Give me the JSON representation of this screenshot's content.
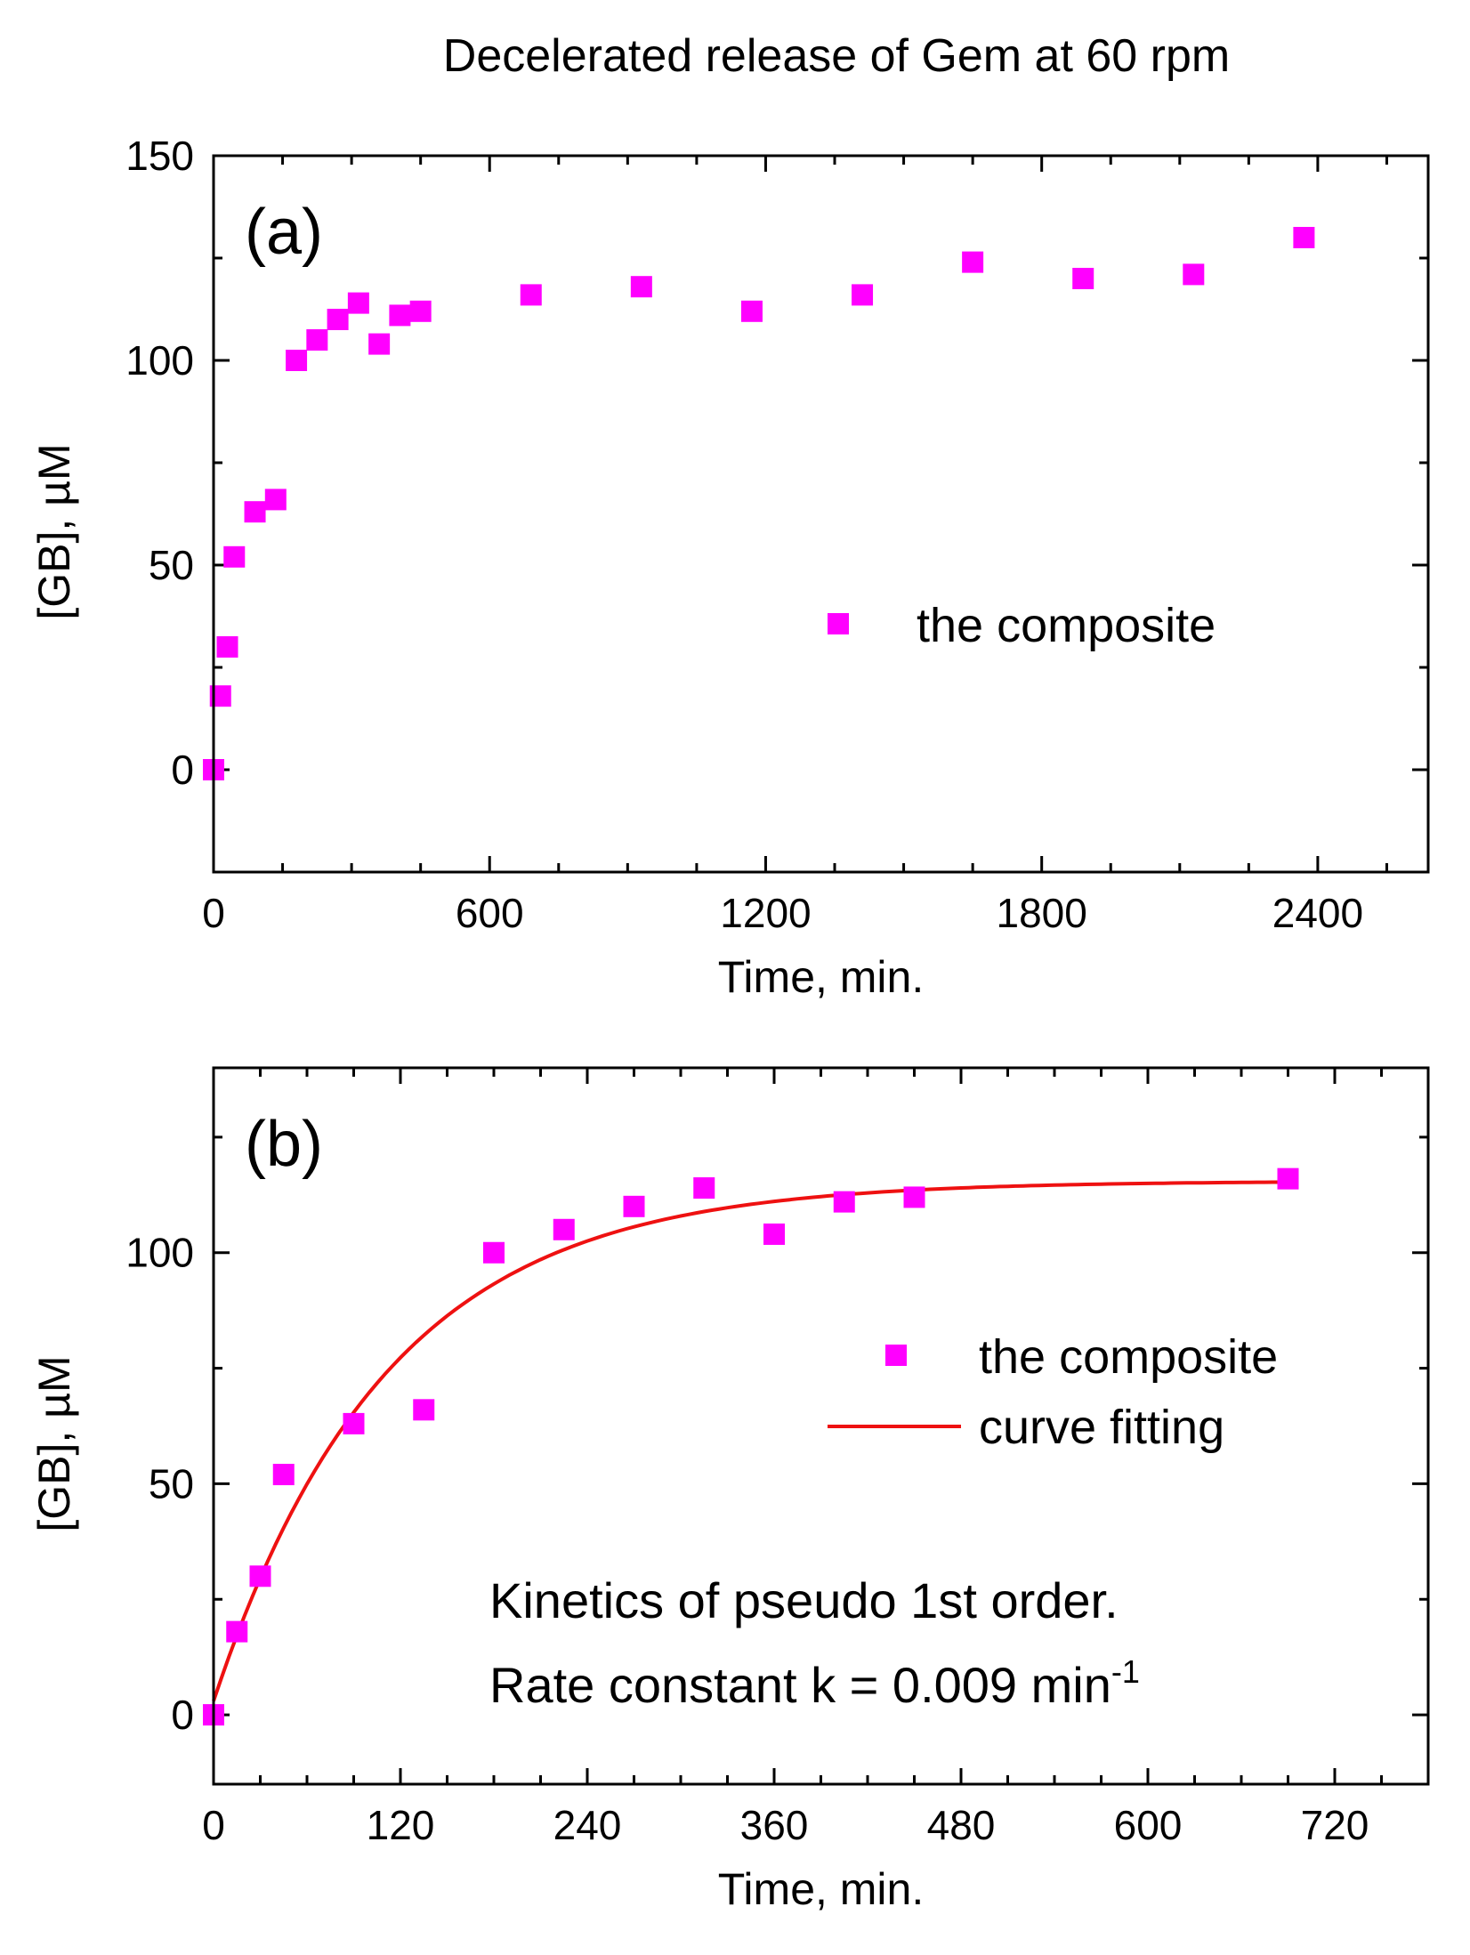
{
  "figure_title": "Decelerated release of Gem at 60 rpm",
  "colors": {
    "marker": "#ff00ff",
    "fit_line": "#ee1111",
    "axes": "#000000"
  },
  "chart_data": [
    {
      "type": "scatter",
      "panel_label": "(a)",
      "xlabel": "Time, min.",
      "ylabel": "[GB], µM",
      "xlim": [
        0,
        2640
      ],
      "ylim": [
        -25,
        150
      ],
      "xticks": [
        0,
        600,
        1200,
        1800,
        2400
      ],
      "yticks": [
        0,
        50,
        100,
        150
      ],
      "legend_position": "center-right",
      "series": [
        {
          "name": "the composite",
          "marker": "square",
          "x": [
            0,
            15,
            30,
            45,
            90,
            135,
            180,
            225,
            270,
            315,
            360,
            405,
            450,
            690,
            930,
            1170,
            1410,
            1650,
            1890,
            2130,
            2370
          ],
          "y": [
            0,
            18,
            30,
            52,
            63,
            66,
            100,
            105,
            110,
            114,
            104,
            111,
            112,
            116,
            118,
            112,
            116,
            124,
            120,
            121,
            130
          ]
        }
      ]
    },
    {
      "type": "scatter",
      "panel_label": "(b)",
      "xlabel": "Time, min.",
      "ylabel": "[GB], µM",
      "xlim": [
        0,
        780
      ],
      "ylim": [
        -15,
        140
      ],
      "xticks": [
        0,
        120,
        240,
        360,
        480,
        600,
        720
      ],
      "yticks": [
        0,
        50,
        100
      ],
      "legend_position": "center-right",
      "series": [
        {
          "name": "the composite",
          "marker": "square",
          "x": [
            0,
            15,
            30,
            45,
            90,
            135,
            180,
            225,
            270,
            315,
            360,
            405,
            450,
            690
          ],
          "y": [
            0,
            18,
            30,
            52,
            63,
            66,
            100,
            105,
            110,
            114,
            104,
            111,
            112,
            116
          ]
        },
        {
          "name": "curve fitting",
          "line": "solid",
          "model": "pseudo first order",
          "params": {
            "amplitude": 115.5,
            "k": 0.009,
            "offset": 3
          },
          "x_range": [
            0,
            690
          ]
        }
      ],
      "annotations": [
        "Kinetics of pseudo 1st order.",
        "Rate constant k = 0.009 min"
      ],
      "annotation_superscript": "-1"
    }
  ]
}
